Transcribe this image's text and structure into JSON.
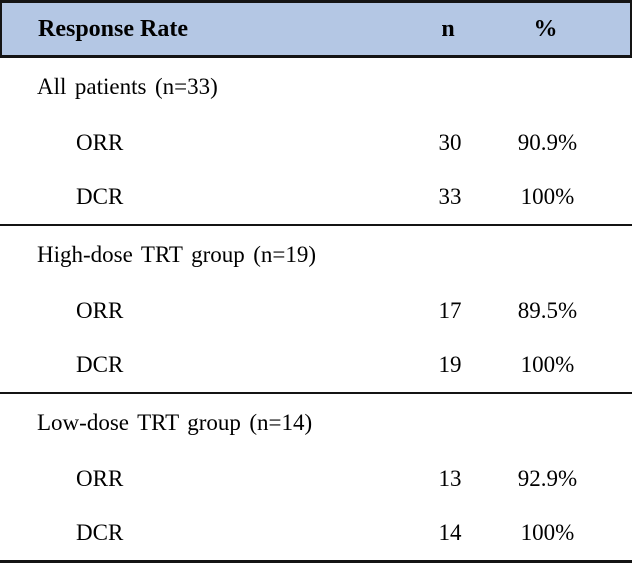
{
  "table": {
    "header": {
      "label": "Response Rate",
      "n": "n",
      "pct": "%"
    },
    "sections": [
      {
        "title": "All patients (n=33)",
        "rows": [
          {
            "label": "ORR",
            "n": "30",
            "pct": "90.9%"
          },
          {
            "label": "DCR",
            "n": "33",
            "pct": "100%"
          }
        ]
      },
      {
        "title": "High-dose TRT group (n=19)",
        "rows": [
          {
            "label": "ORR",
            "n": "17",
            "pct": "89.5%"
          },
          {
            "label": "DCR",
            "n": "19",
            "pct": "100%"
          }
        ]
      },
      {
        "title": "Low-dose TRT group (n=14)",
        "rows": [
          {
            "label": "ORR",
            "n": "13",
            "pct": "92.9%"
          },
          {
            "label": "DCR",
            "n": "14",
            "pct": "100%"
          }
        ]
      }
    ]
  },
  "colors": {
    "header_bg": "#b4c7e4",
    "border": "#141414",
    "text": "#000000",
    "background": "#ffffff"
  }
}
